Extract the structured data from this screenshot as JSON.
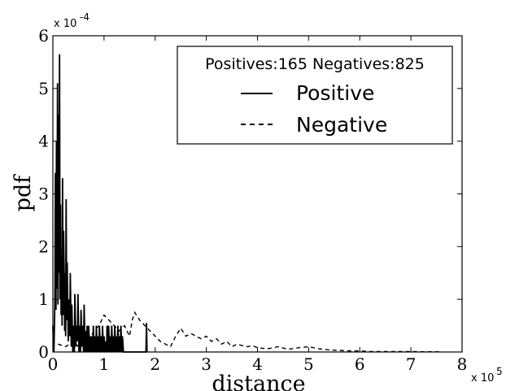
{
  "chart_data": {
    "type": "line",
    "xlabel": "distance",
    "ylabel": "pdf",
    "x_multiplier": "x 10",
    "x_multiplier_exp": "5",
    "y_multiplier": "x 10",
    "y_multiplier_exp": "-4",
    "xlim": [
      0,
      8
    ],
    "ylim": [
      0,
      6
    ],
    "x_ticks": [
      "0",
      "1",
      "2",
      "3",
      "4",
      "5",
      "6",
      "7",
      "8"
    ],
    "y_ticks": [
      "0",
      "1",
      "2",
      "3",
      "4",
      "5",
      "6"
    ],
    "grid": false,
    "legend": {
      "placement": "top-right",
      "title": "Positives:165 Negatives:825"
    },
    "series": [
      {
        "name": "Positive",
        "style": "solid",
        "x": [
          0.0,
          0.02,
          0.04,
          0.05,
          0.06,
          0.07,
          0.08,
          0.09,
          0.1,
          0.11,
          0.12,
          0.13,
          0.14,
          0.15,
          0.16,
          0.17,
          0.18,
          0.19,
          0.2,
          0.21,
          0.22,
          0.23,
          0.24,
          0.25,
          0.26,
          0.27,
          0.28,
          0.3,
          0.31,
          0.33,
          0.34,
          0.36,
          0.37,
          0.39,
          0.4,
          0.42,
          0.43,
          0.45,
          0.46,
          0.48,
          0.49,
          0.51,
          0.52,
          0.54,
          0.55,
          0.57,
          0.58,
          0.6,
          0.61,
          0.63,
          0.64,
          0.66,
          0.67,
          0.69,
          0.7,
          0.72,
          0.73,
          0.75,
          0.76,
          0.78,
          0.79,
          0.81,
          0.82,
          0.84,
          0.85,
          0.87,
          0.88,
          0.9,
          0.91,
          0.93,
          0.94,
          0.96,
          0.97,
          0.99,
          1.0,
          1.02,
          1.03,
          1.05,
          1.06,
          1.08,
          1.09,
          1.11,
          1.12,
          1.14,
          1.15,
          1.17,
          1.18,
          1.2,
          1.21,
          1.23,
          1.24,
          1.26,
          1.27,
          1.29,
          1.3,
          1.32,
          1.33,
          1.35,
          1.36,
          1.38,
          1.82,
          1.83,
          1.84
        ],
        "y": [
          0.5,
          0,
          1.0,
          3.4,
          0.8,
          4.0,
          1.2,
          5.1,
          0.9,
          4.5,
          1.5,
          5.65,
          1.0,
          2.8,
          0.7,
          1.7,
          0.5,
          3.3,
          0.7,
          2.3,
          1.6,
          0.4,
          1.5,
          0.3,
          2.9,
          0.6,
          1.7,
          0.2,
          1.0,
          0.3,
          1.5,
          0.1,
          0.9,
          0,
          0.5,
          0,
          1.1,
          0.1,
          0.5,
          0.2,
          1.1,
          0,
          0.5,
          0,
          0.8,
          0.1,
          0.5,
          0,
          0.9,
          0,
          0.4,
          0,
          0.5,
          0,
          0.5,
          0,
          0.3,
          0,
          0.3,
          0,
          0.5,
          0,
          0.3,
          0,
          0.5,
          0,
          0.3,
          0,
          0.5,
          0,
          0.3,
          0,
          0.5,
          0,
          0.3,
          0,
          0.2,
          0,
          0.5,
          0,
          0.5,
          0,
          0.3,
          0,
          0.5,
          0,
          0.3,
          0,
          0.5,
          0,
          0.3,
          0,
          0.5,
          0,
          0.3,
          0,
          0.5,
          0,
          0.3,
          0,
          0,
          0.55,
          0
        ]
      },
      {
        "name": "Negative",
        "style": "dashed",
        "x": [
          0.1,
          0.25,
          0.4,
          0.5,
          0.6,
          0.7,
          0.8,
          0.9,
          1.0,
          1.1,
          1.2,
          1.3,
          1.4,
          1.5,
          1.55,
          1.6,
          1.7,
          1.8,
          1.9,
          2.0,
          2.1,
          2.2,
          2.3,
          2.4,
          2.5,
          2.6,
          2.7,
          2.8,
          2.9,
          3.0,
          3.1,
          3.2,
          3.3,
          3.4,
          3.5,
          3.6,
          3.7,
          3.8,
          3.9,
          4.0,
          4.2,
          4.4,
          4.6,
          4.8,
          5.0,
          5.2,
          5.4,
          5.6,
          5.8,
          6.0,
          6.2,
          6.4,
          6.6,
          6.8,
          7.0,
          7.2,
          7.4,
          7.6
        ],
        "y": [
          0.15,
          0.1,
          0.2,
          0.1,
          0.3,
          0.2,
          0.4,
          0.5,
          0.7,
          0.6,
          0.5,
          0.4,
          0.5,
          0.3,
          0.6,
          0.75,
          0.6,
          0.5,
          0.4,
          0.3,
          0.2,
          0.15,
          0.1,
          0.3,
          0.45,
          0.3,
          0.35,
          0.3,
          0.25,
          0.3,
          0.2,
          0.25,
          0.15,
          0.2,
          0.1,
          0.15,
          0.12,
          0.1,
          0.12,
          0.08,
          0.06,
          0.1,
          0.05,
          0.08,
          0.1,
          0.06,
          0.04,
          0.03,
          0.02,
          0.02,
          0.01,
          0.01,
          0.01,
          0.01,
          0.01,
          0.005,
          0.005,
          0.003
        ]
      }
    ]
  }
}
